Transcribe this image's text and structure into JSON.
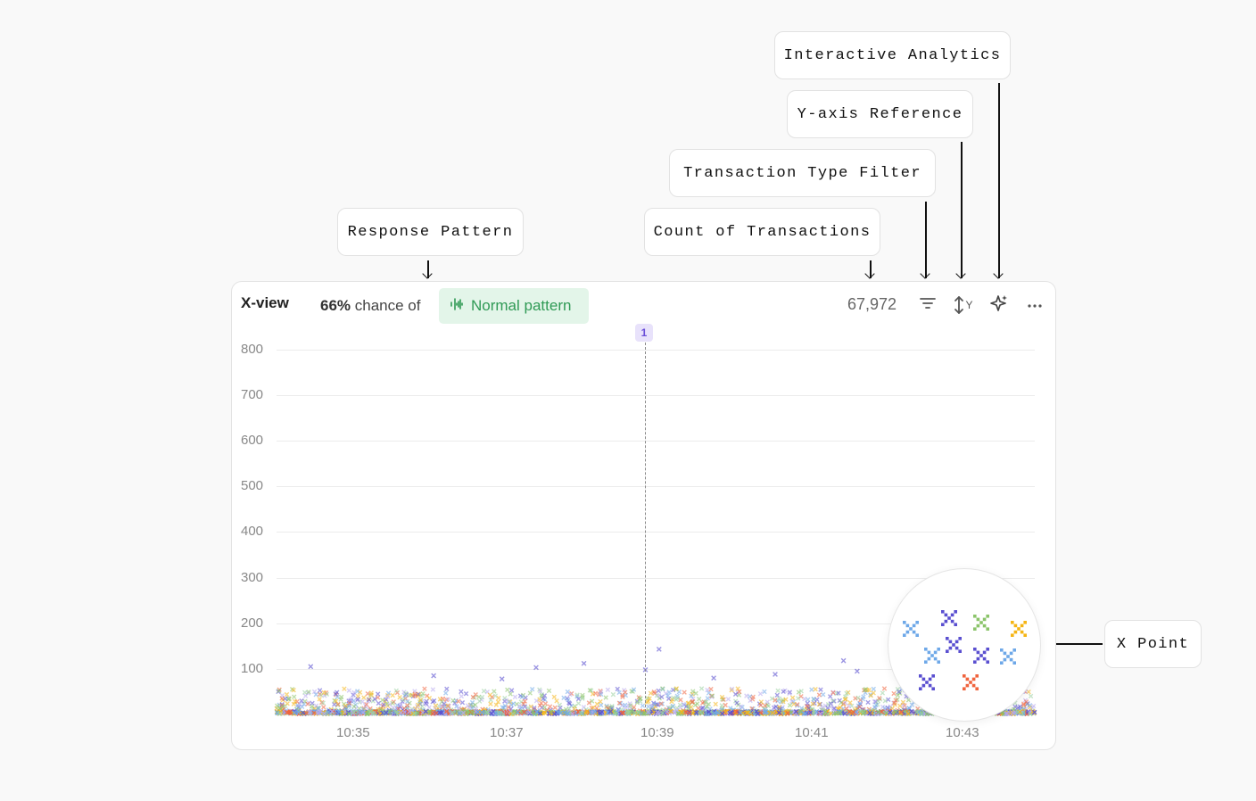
{
  "callouts": {
    "interactive_analytics": "Interactive Analytics",
    "y_axis_reference": "Y-axis Reference",
    "transaction_type_filter": "Transaction Type Filter",
    "count_of_transactions": "Count of Transactions",
    "response_pattern": "Response Pattern",
    "x_point": "X Point"
  },
  "header": {
    "title": "X-view",
    "chance_percent": "66%",
    "chance_text": "chance of",
    "pattern_label": "Normal pattern",
    "transaction_count": "67,972",
    "icons": [
      "filter-icon",
      "y-axis-icon",
      "sparkle-icon",
      "more-icon"
    ],
    "y_axis_icon_letter": "Y"
  },
  "marker": {
    "label": "1",
    "x_time": "10:39"
  },
  "colors": {
    "pattern_green": "#2f9a55",
    "pattern_bg": "#e3f5e9",
    "marker_purple": "#6b4fd8",
    "points": [
      "#6ea8e8",
      "#5a4fd0",
      "#8bc46a",
      "#f5b515",
      "#f0643e",
      "#9ad0a0",
      "#b7a8ee"
    ]
  },
  "chart_data": {
    "type": "scatter",
    "title": "X-view",
    "xlabel": "",
    "ylabel": "",
    "ylim": [
      0,
      800
    ],
    "yticks": [
      "800",
      "700",
      "600",
      "500",
      "400",
      "300",
      "200",
      "100"
    ],
    "xticks": [
      "10:35",
      "10:37",
      "10:39",
      "10:41",
      "10:43"
    ],
    "x_range": [
      "10:34:25",
      "10:43:40"
    ],
    "grid": true,
    "description_of_points": "dense scatter of transaction response times, most below 100, sparse outliers up to ~145",
    "outliers": [
      {
        "x": "10:34:50",
        "y": 105
      },
      {
        "x": "10:36:20",
        "y": 85
      },
      {
        "x": "10:37:10",
        "y": 78
      },
      {
        "x": "10:37:35",
        "y": 103
      },
      {
        "x": "10:38:10",
        "y": 112
      },
      {
        "x": "10:38:55",
        "y": 98
      },
      {
        "x": "10:39:05",
        "y": 143
      },
      {
        "x": "10:39:45",
        "y": 80
      },
      {
        "x": "10:40:30",
        "y": 88
      },
      {
        "x": "10:41:20",
        "y": 118
      },
      {
        "x": "10:41:30",
        "y": 95
      },
      {
        "x": "10:42:20",
        "y": 100
      },
      {
        "x": "10:42:40",
        "y": 103
      }
    ]
  },
  "zoom_points": [
    {
      "color": "#6ea8e8"
    },
    {
      "color": "#5a4fd0"
    },
    {
      "color": "#8bc46a"
    },
    {
      "color": "#f5b515"
    },
    {
      "color": "#6ea8e8"
    },
    {
      "color": "#5a4fd0"
    },
    {
      "color": "#5a4fd0"
    },
    {
      "color": "#6ea8e8"
    },
    {
      "color": "#5a4fd0"
    },
    {
      "color": "#f0643e"
    }
  ]
}
